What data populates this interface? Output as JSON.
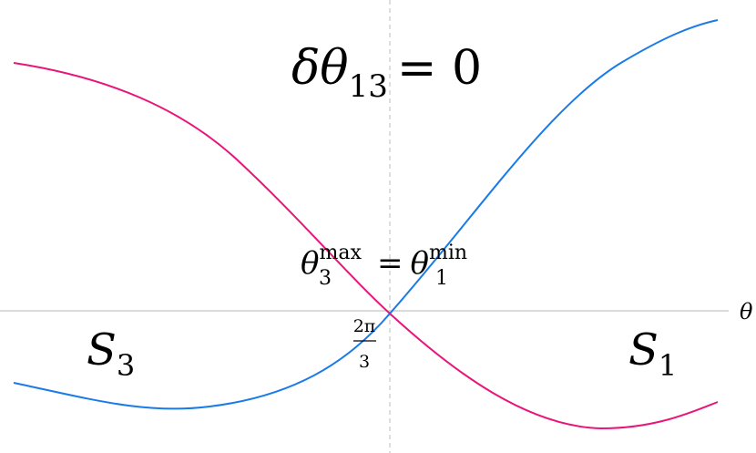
{
  "title": {
    "symbol": "δθ",
    "subscript": "13",
    "equals": "= 0"
  },
  "crossing_label": {
    "left_symbol": "θ",
    "left_sub": "3",
    "left_sup": "max",
    "equals": "=",
    "right_symbol": "θ",
    "right_sub": "1",
    "right_sup": "min"
  },
  "axis_label": "θ",
  "tick": {
    "numerator": "2π",
    "denominator": "3"
  },
  "regions": [
    {
      "symbol": "S",
      "subscript": "3"
    },
    {
      "symbol": "S",
      "subscript": "1"
    }
  ]
}
